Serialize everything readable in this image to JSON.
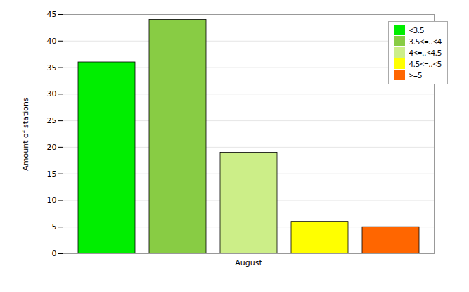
{
  "chart_data": {
    "type": "bar",
    "categories": [
      "August"
    ],
    "series": [
      {
        "name": "<3.5",
        "color": "#00ee00",
        "values": [
          36
        ]
      },
      {
        "name": "3.5<=..<4",
        "color": "#88cc44",
        "values": [
          44
        ]
      },
      {
        "name": "4<=..<4.5",
        "color": "#ccee88",
        "values": [
          19
        ]
      },
      {
        "name": "4.5<=..<5",
        "color": "#ffff00",
        "values": [
          6
        ]
      },
      {
        "name": ">=5",
        "color": "#ff6600",
        "values": [
          5
        ]
      }
    ],
    "ylabel": "Amount of stations",
    "ylim": [
      0,
      45
    ],
    "yticks": [
      0,
      5,
      10,
      15,
      20,
      25,
      30,
      35,
      40,
      45
    ],
    "grid": true,
    "legend": "upper right"
  }
}
